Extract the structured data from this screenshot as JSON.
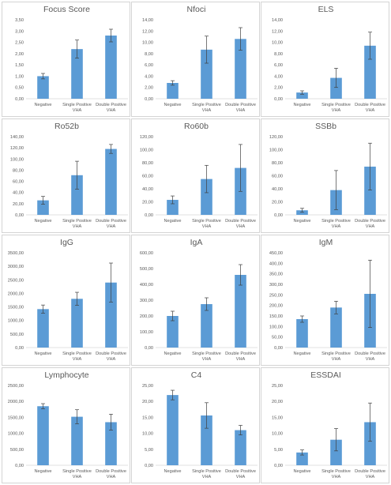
{
  "chart_data": [
    {
      "type": "bar",
      "title": "Focus Score",
      "categories": [
        [
          "Negative"
        ],
        [
          "Single Positive",
          "VHA"
        ],
        [
          "Double Positive",
          "VHA"
        ]
      ],
      "values": [
        1.0,
        2.2,
        2.8
      ],
      "errors": [
        0.12,
        0.4,
        0.28
      ],
      "ylim": [
        0,
        3.5
      ],
      "yticks": [
        "0,00",
        "0,50",
        "1,00",
        "1,50",
        "2,00",
        "2,50",
        "3,00",
        "3,50"
      ],
      "color": "#5b9bd5"
    },
    {
      "type": "bar",
      "title": "Nfoci",
      "categories": [
        [
          "Negative"
        ],
        [
          "Single Positive",
          "VHA"
        ],
        [
          "Double Positive",
          "VHA"
        ]
      ],
      "values": [
        2.8,
        8.7,
        10.6
      ],
      "errors": [
        0.4,
        2.4,
        2.0
      ],
      "ylim": [
        0,
        14
      ],
      "yticks": [
        "0,00",
        "2,00",
        "4,00",
        "6,00",
        "8,00",
        "10,00",
        "12,00",
        "14,00"
      ],
      "color": "#5b9bd5"
    },
    {
      "type": "bar",
      "title": "ELS",
      "categories": [
        [
          "Negative"
        ],
        [
          "Single Positive",
          "VHA"
        ],
        [
          "Double Positive",
          "VHA"
        ]
      ],
      "values": [
        1.1,
        3.7,
        9.4
      ],
      "errors": [
        0.3,
        1.7,
        2.4
      ],
      "ylim": [
        0,
        14
      ],
      "yticks": [
        "0,00",
        "2,00",
        "4,00",
        "6,00",
        "8,00",
        "10,00",
        "12,00",
        "14,00"
      ],
      "color": "#5b9bd5"
    },
    {
      "type": "bar",
      "title": "Ro52b",
      "categories": [
        [
          "Negative"
        ],
        [
          "Single Positive",
          "VHA"
        ],
        [
          "Double Positive",
          "VHA"
        ]
      ],
      "values": [
        26,
        71,
        118
      ],
      "errors": [
        7,
        25,
        8
      ],
      "ylim": [
        0,
        140
      ],
      "yticks": [
        "0,00",
        "20,00",
        "40,00",
        "60,00",
        "80,00",
        "100,00",
        "120,00",
        "140,00"
      ],
      "color": "#5b9bd5"
    },
    {
      "type": "bar",
      "title": "Ro60b",
      "categories": [
        [
          "Negative"
        ],
        [
          "Single Positive",
          "VHA"
        ],
        [
          "Double Positive",
          "VHA"
        ]
      ],
      "values": [
        23,
        55,
        72
      ],
      "errors": [
        6,
        21,
        36
      ],
      "ylim": [
        0,
        120
      ],
      "yticks": [
        "0,00",
        "20,00",
        "40,00",
        "60,00",
        "80,00",
        "100,00",
        "120,00"
      ],
      "color": "#5b9bd5"
    },
    {
      "type": "bar",
      "title": "SSBb",
      "categories": [
        [
          "Negative"
        ],
        [
          "Single Positive",
          "VHA"
        ],
        [
          "Double Positive",
          "VHA"
        ]
      ],
      "values": [
        7,
        38,
        74
      ],
      "errors": [
        3,
        30,
        36
      ],
      "ylim": [
        0,
        120
      ],
      "yticks": [
        "0,00",
        "20,00",
        "40,00",
        "60,00",
        "80,00",
        "100,00",
        "120,00"
      ],
      "color": "#5b9bd5"
    },
    {
      "type": "bar",
      "title": "IgG",
      "categories": [
        [
          "Negative"
        ],
        [
          "Single Positive",
          "VHA"
        ],
        [
          "Double Positive",
          "VHA"
        ]
      ],
      "values": [
        1420,
        1800,
        2400
      ],
      "errors": [
        150,
        240,
        720
      ],
      "ylim": [
        0,
        3500
      ],
      "yticks": [
        "0,00",
        "500,00",
        "1000,00",
        "1500,00",
        "2000,00",
        "2500,00",
        "3000,00",
        "3500,00"
      ],
      "color": "#5b9bd5"
    },
    {
      "type": "bar",
      "title": "IgA",
      "categories": [
        [
          "Negative"
        ],
        [
          "Single Positive",
          "VHA"
        ],
        [
          "Double Positive",
          "VHA"
        ]
      ],
      "values": [
        200,
        275,
        460
      ],
      "errors": [
        30,
        40,
        65
      ],
      "ylim": [
        0,
        600
      ],
      "yticks": [
        "0,00",
        "100,00",
        "200,00",
        "300,00",
        "400,00",
        "500,00",
        "600,00"
      ],
      "color": "#5b9bd5"
    },
    {
      "type": "bar",
      "title": "IgM",
      "categories": [
        [
          "Negative"
        ],
        [
          "Single Positive",
          "VHA"
        ],
        [
          "Double Positive",
          "VHA"
        ]
      ],
      "values": [
        135,
        190,
        255
      ],
      "errors": [
        15,
        30,
        160
      ],
      "ylim": [
        0,
        450
      ],
      "yticks": [
        "0,00",
        "50,00",
        "100,00",
        "150,00",
        "200,00",
        "250,00",
        "300,00",
        "350,00",
        "400,00",
        "450,00"
      ],
      "color": "#5b9bd5"
    },
    {
      "type": "bar",
      "title": "Lymphocyte",
      "categories": [
        [
          "Negative"
        ],
        [
          "Single Positive",
          "VHA"
        ],
        [
          "Double Positive",
          "VHA"
        ]
      ],
      "values": [
        1850,
        1520,
        1350
      ],
      "errors": [
        80,
        220,
        250
      ],
      "ylim": [
        0,
        2500
      ],
      "yticks": [
        "0,00",
        "500,00",
        "1000,00",
        "1500,00",
        "2000,00",
        "2500,00"
      ],
      "color": "#5b9bd5"
    },
    {
      "type": "bar",
      "title": "C4",
      "categories": [
        [
          "Negative"
        ],
        [
          "Single Positive",
          "VHA"
        ],
        [
          "Double Positive",
          "VHA"
        ]
      ],
      "values": [
        22,
        15.6,
        11
      ],
      "errors": [
        1.5,
        4,
        1.5
      ],
      "ylim": [
        0,
        25
      ],
      "yticks": [
        "0,00",
        "5,00",
        "10,00",
        "15,00",
        "20,00",
        "25,00"
      ],
      "color": "#5b9bd5"
    },
    {
      "type": "bar",
      "title": "ESSDAI",
      "categories": [
        [
          "Negative"
        ],
        [
          "Single Positive",
          "VHA"
        ],
        [
          "Double Positive",
          "VHA"
        ]
      ],
      "values": [
        4,
        8,
        13.5
      ],
      "errors": [
        0.8,
        3.5,
        6
      ],
      "ylim": [
        0,
        25
      ],
      "yticks": [
        "0,00",
        "5,00",
        "10,00",
        "15,00",
        "20,00",
        "25,00"
      ],
      "color": "#5b9bd5"
    }
  ]
}
